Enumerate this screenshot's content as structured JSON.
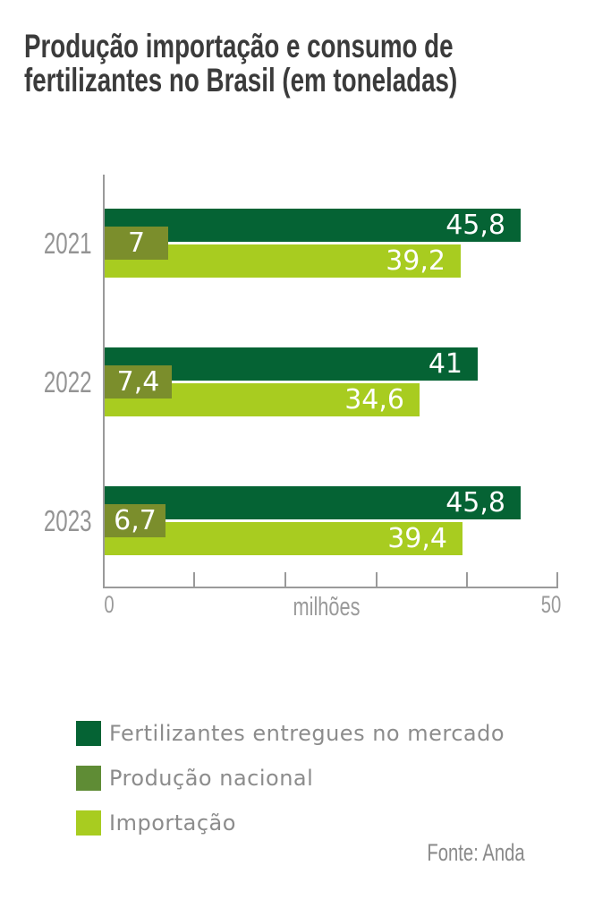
{
  "title": {
    "line1": "Produção importação e consumo de",
    "line2": "fertilizantes no Brasil (em toneladas)"
  },
  "chart_data": {
    "type": "bar",
    "orientation": "horizontal",
    "title": "Produção importação e consumo de fertilizantes no Brasil (em toneladas)",
    "categories": [
      "2021",
      "2022",
      "2023"
    ],
    "series": [
      {
        "name": "Fertilizantes entregues no mercado",
        "color": "#056334",
        "values": [
          45.8,
          41,
          45.8
        ],
        "labels": [
          "45,8",
          "41",
          "45,8"
        ]
      },
      {
        "name": "Produção nacional",
        "color": "#7b8e2c",
        "legend_color": "#5f8c35",
        "values": [
          7,
          7.4,
          6.7
        ],
        "labels": [
          "7",
          "7,4",
          "6,7"
        ]
      },
      {
        "name": "Importação",
        "color": "#a8cc20",
        "values": [
          39.2,
          34.6,
          39.4
        ],
        "labels": [
          "39,2",
          "34,6",
          "39,4"
        ]
      }
    ],
    "xlabel": "milhões",
    "xlim": [
      0,
      50
    ],
    "x_ticks": [
      0,
      10,
      20,
      30,
      40,
      50
    ],
    "x_tick_labels": [
      "0",
      "50"
    ],
    "value_labels_inside_bars": true,
    "legend_position": "bottom",
    "grid": false
  },
  "source": "Fonte: Anda",
  "colors": {
    "axis": "#9a9a9a",
    "title_text": "#3b3b3b",
    "year_text": "#949494",
    "legend_text": "#8c8c8c"
  }
}
